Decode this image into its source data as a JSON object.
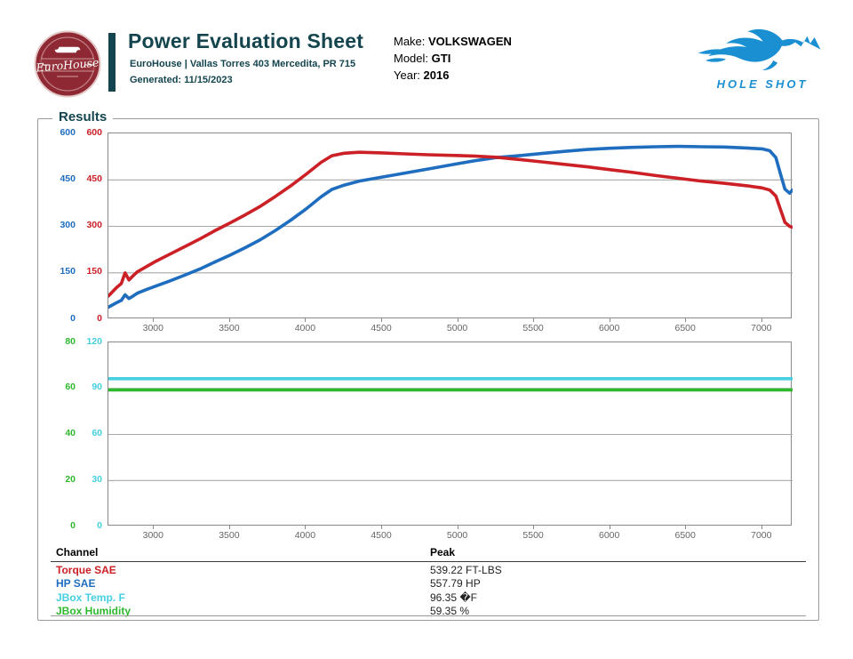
{
  "header": {
    "title": "Power Evaluation Sheet",
    "subtitle": "EuroHouse | Vallas Torres 403 Mercedita, PR 715",
    "generated": "Generated: 11/15/2023",
    "logo_name": "EuroHouse",
    "vehicle": {
      "make_label": "Make: ",
      "make": "VOLKSWAGEN",
      "model_label": "Model: ",
      "model": "GTI",
      "year_label": "Year: ",
      "year": "2016"
    },
    "brand_name": "HOLE SHOT"
  },
  "results": {
    "legend": "Results"
  },
  "colors": {
    "torque": "#cc2027",
    "hp": "#1e6dbf",
    "temp": "#45cfe0",
    "humidity": "#2eb82e",
    "accent_teal": "#14454e",
    "brand_blue": "#1a8fd1",
    "logo_red": "#8e2934"
  },
  "chart_data": [
    {
      "type": "line",
      "x_range": [
        2700,
        7200
      ],
      "x_ticks": [
        3000,
        3500,
        4000,
        4500,
        5000,
        5500,
        6000,
        6500,
        7000
      ],
      "grid": true,
      "axes": [
        {
          "name": "hp-axis",
          "color": "#1e6dbf",
          "range": [
            0,
            600
          ],
          "ticks": [
            "600",
            "450",
            "300",
            "150",
            "0"
          ]
        },
        {
          "name": "torque-axis",
          "color": "#cc2027",
          "range": [
            0,
            600
          ],
          "ticks": [
            "600",
            "450",
            "300",
            "150",
            "0"
          ]
        }
      ],
      "series": [
        {
          "name": "HP SAE",
          "color": "#1e6dbf",
          "range": [
            0,
            600
          ],
          "points": [
            [
              2700,
              39
            ],
            [
              2755,
              54
            ],
            [
              2785,
              61
            ],
            [
              2810,
              79
            ],
            [
              2835,
              67
            ],
            [
              2862,
              75
            ],
            [
              2890,
              84
            ],
            [
              2950,
              96
            ],
            [
              3000,
              105
            ],
            [
              3100,
              123
            ],
            [
              3200,
              142
            ],
            [
              3300,
              162
            ],
            [
              3400,
              185
            ],
            [
              3500,
              207
            ],
            [
              3600,
              231
            ],
            [
              3700,
              257
            ],
            [
              3800,
              287
            ],
            [
              3900,
              320
            ],
            [
              4000,
              356
            ],
            [
              4100,
              396
            ],
            [
              4170,
              419
            ],
            [
              4250,
              433
            ],
            [
              4350,
              446
            ],
            [
              4500,
              459
            ],
            [
              4650,
              472
            ],
            [
              4800,
              485
            ],
            [
              4950,
              498
            ],
            [
              5100,
              511
            ],
            [
              5250,
              522
            ],
            [
              5400,
              528
            ],
            [
              5550,
              535
            ],
            [
              5700,
              542
            ],
            [
              5850,
              548
            ],
            [
              6000,
              552
            ],
            [
              6150,
              555
            ],
            [
              6300,
              557
            ],
            [
              6450,
              558
            ],
            [
              6600,
              557
            ],
            [
              6750,
              556
            ],
            [
              6900,
              553
            ],
            [
              7000,
              550
            ],
            [
              7050,
              544
            ],
            [
              7090,
              522
            ],
            [
              7120,
              470
            ],
            [
              7150,
              420
            ],
            [
              7180,
              407
            ],
            [
              7200,
              417
            ]
          ]
        },
        {
          "name": "Torque SAE",
          "color": "#cc2027",
          "range": [
            0,
            600
          ],
          "points": [
            [
              2700,
              75
            ],
            [
              2755,
              103
            ],
            [
              2785,
              115
            ],
            [
              2810,
              150
            ],
            [
              2835,
              127
            ],
            [
              2862,
              140
            ],
            [
              2890,
              153
            ],
            [
              2950,
              170
            ],
            [
              3000,
              184
            ],
            [
              3100,
              209
            ],
            [
              3200,
              234
            ],
            [
              3300,
              259
            ],
            [
              3400,
              286
            ],
            [
              3500,
              311
            ],
            [
              3600,
              337
            ],
            [
              3700,
              365
            ],
            [
              3800,
              397
            ],
            [
              3900,
              431
            ],
            [
              4000,
              468
            ],
            [
              4100,
              507
            ],
            [
              4170,
              528
            ],
            [
              4250,
              536
            ],
            [
              4350,
              539
            ],
            [
              4500,
              537
            ],
            [
              4650,
              534
            ],
            [
              4800,
              531
            ],
            [
              4950,
              529
            ],
            [
              5100,
              527
            ],
            [
              5250,
              523
            ],
            [
              5400,
              516
            ],
            [
              5550,
              508
            ],
            [
              5700,
              500
            ],
            [
              5850,
              492
            ],
            [
              6000,
              483
            ],
            [
              6150,
              474
            ],
            [
              6300,
              464
            ],
            [
              6450,
              455
            ],
            [
              6600,
              446
            ],
            [
              6750,
              439
            ],
            [
              6900,
              431
            ],
            [
              7000,
              424
            ],
            [
              7050,
              417
            ],
            [
              7090,
              398
            ],
            [
              7120,
              355
            ],
            [
              7150,
              313
            ],
            [
              7180,
              300
            ],
            [
              7200,
              297
            ]
          ]
        }
      ]
    },
    {
      "type": "line",
      "x_range": [
        2700,
        7200
      ],
      "x_ticks": [
        3000,
        3500,
        4000,
        4500,
        5000,
        5500,
        6000,
        6500,
        7000
      ],
      "grid": true,
      "axes": [
        {
          "name": "humidity-axis",
          "color": "#2eb82e",
          "range": [
            0,
            80
          ],
          "ticks": [
            "80",
            "60",
            "40",
            "20",
            "0"
          ]
        },
        {
          "name": "temp-axis",
          "color": "#45cfe0",
          "range": [
            0,
            120
          ],
          "ticks": [
            "120",
            "90",
            "60",
            "30",
            "0"
          ]
        }
      ],
      "series": [
        {
          "name": "JBox Temp. F",
          "color": "#45cfe0",
          "range": [
            0,
            120
          ],
          "flat_value": 96.35
        },
        {
          "name": "JBox Humidity",
          "color": "#2eb82e",
          "range": [
            0,
            80
          ],
          "flat_value": 59.35
        }
      ]
    }
  ],
  "table": {
    "headers": [
      "Channel",
      "Peak"
    ],
    "rows": [
      {
        "channel": "Torque SAE",
        "color": "#cc2027",
        "peak": "539.22 FT-LBS"
      },
      {
        "channel": "HP SAE",
        "color": "#1e6dbf",
        "peak": "557.79 HP"
      },
      {
        "channel": "JBox Temp. F",
        "color": "#45cfe0",
        "peak": "96.35 �F"
      },
      {
        "channel": "JBox Humidity",
        "color": "#2eb82e",
        "peak": "59.35 %"
      }
    ]
  }
}
